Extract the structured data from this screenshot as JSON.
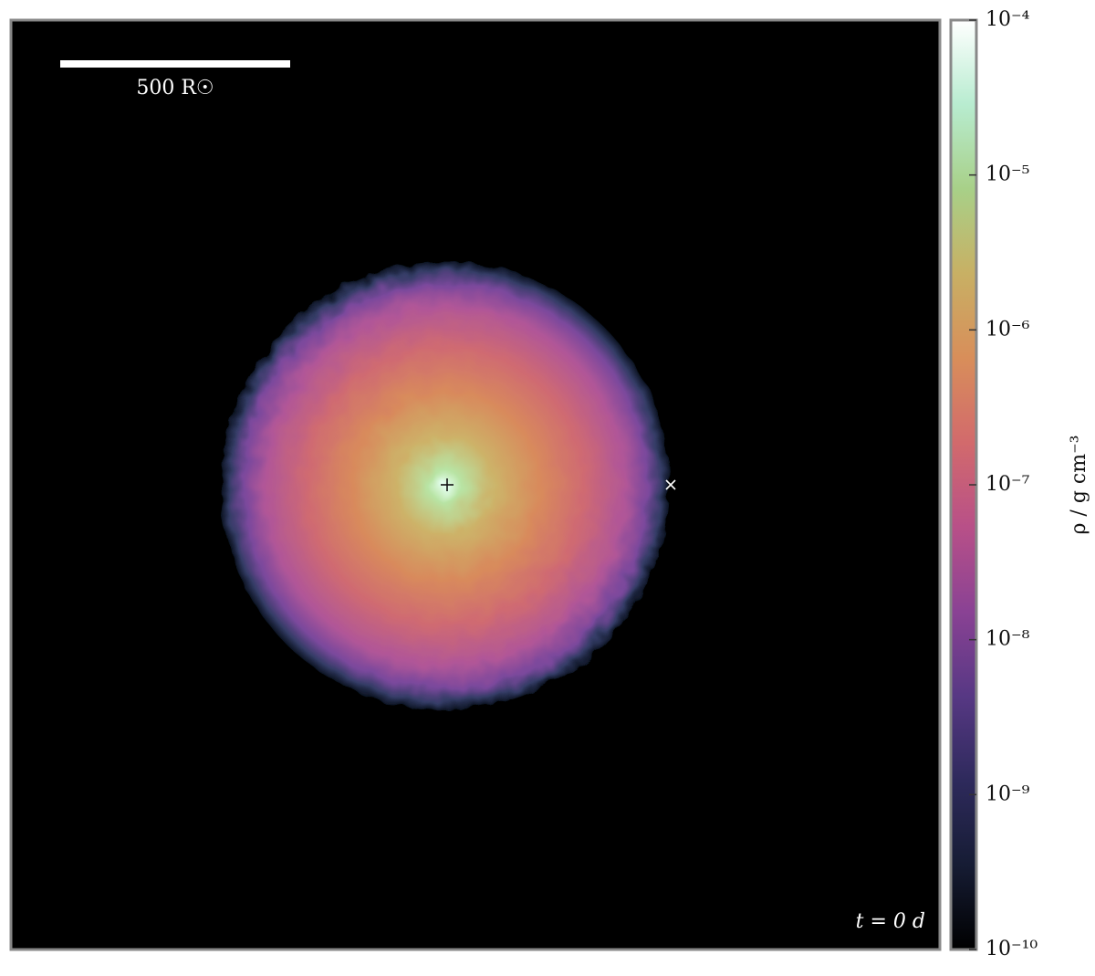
{
  "chart_data": {
    "type": "density_map",
    "scale_bar_label": "500 R☉",
    "time_label": "t = 0 d",
    "colorbar": {
      "label": "ρ / g cm⁻³",
      "log_scale": true,
      "ylim": [
        1e-10,
        0.0001
      ],
      "yticks": [
        {
          "value": 1e-10,
          "label": "10⁻¹⁰"
        },
        {
          "value": 1e-09,
          "label": "10⁻⁹"
        },
        {
          "value": 1e-08,
          "label": "10⁻⁸"
        },
        {
          "value": 1e-07,
          "label": "10⁻⁷"
        },
        {
          "value": 1e-06,
          "label": "10⁻⁶"
        },
        {
          "value": 1e-05,
          "label": "10⁻⁵"
        },
        {
          "value": 0.0001,
          "label": "10⁻⁴"
        }
      ],
      "colormap": [
        "#000000",
        "#161c34",
        "#2e2a5c",
        "#573884",
        "#8a4294",
        "#b85088",
        "#d26a6c",
        "#d88e5a",
        "#c8b064",
        "#a8d088",
        "#b8ecd0",
        "#ffffff"
      ]
    }
  }
}
